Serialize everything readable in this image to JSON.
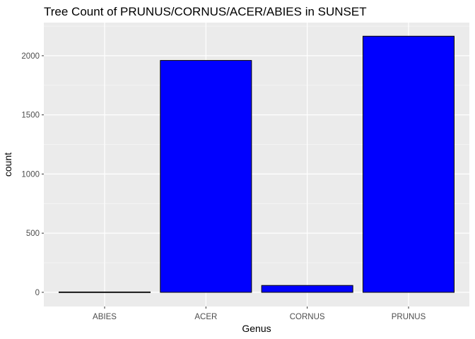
{
  "chart_data": {
    "type": "bar",
    "title": "Tree Count of PRUNUS/CORNUS/ACER/ABIES in SUNSET",
    "xlabel": "Genus",
    "ylabel": "count",
    "categories": [
      "ABIES",
      "ACER",
      "CORNUS",
      "PRUNUS"
    ],
    "values": [
      3,
      1960,
      58,
      2165
    ],
    "ylim": [
      -120,
      2280
    ],
    "yticks": [
      0,
      500,
      1000,
      1500,
      2000
    ],
    "ytick_labels": [
      "0",
      "500",
      "1000",
      "1500",
      "2000"
    ],
    "grid": true,
    "legend": "none",
    "colors": {
      "panel": "#ebebeb",
      "grid_major": "#ffffff",
      "bar_fill": "#0000ff",
      "bar_outline": "#000000",
      "tick": "#333333"
    }
  }
}
